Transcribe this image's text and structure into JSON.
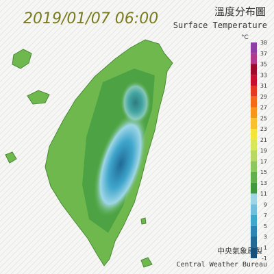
{
  "header": {
    "datetime": "2019/01/07 06:00",
    "title_zh": "溫度分布圖",
    "title_en": "Surface Temperature"
  },
  "legend": {
    "unit": "°C",
    "labels": [
      "38",
      "37",
      "35",
      "33",
      "31",
      "29",
      "27",
      "25",
      "23",
      "21",
      "19",
      "17",
      "15",
      "13",
      "11",
      "9",
      "7",
      "5",
      "3",
      "1",
      "-1"
    ],
    "colors": [
      "#8e3fa6",
      "#b03a8c",
      "#9c0b2a",
      "#c8102e",
      "#e43a1e",
      "#f26a1b",
      "#f7961d",
      "#fbc02d",
      "#f5e43a",
      "#d9e65a",
      "#b7d964",
      "#8cc85a",
      "#62b04c",
      "#3f9a3e",
      "#9fd6e6",
      "#6fc0dc",
      "#3fa6cc",
      "#2a86b4",
      "#1f6b96",
      "#17507a"
    ]
  },
  "footer": {
    "org_zh": "中央氣象局製",
    "org_en": "Central Weather Bureau"
  }
}
